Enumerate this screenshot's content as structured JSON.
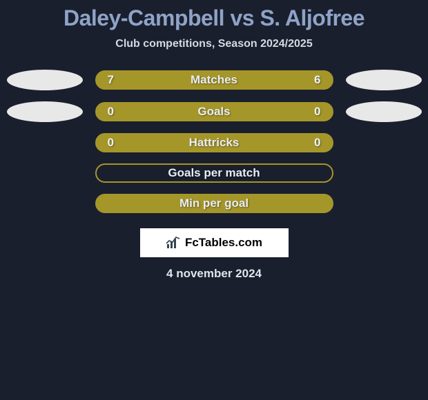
{
  "title": "Daley-Campbell vs S. Aljofree",
  "subtitle": "Club competitions, Season 2024/2025",
  "logo_text": "FcTables.com",
  "footer_date": "4 november 2024",
  "colors": {
    "background": "#1a1f2e",
    "title": "#8fa3c7",
    "text": "#e0e4ec",
    "ellipse": "#e8e8e8",
    "logo_bg": "#ffffff",
    "logo_chart": "#36454f"
  },
  "rows": [
    {
      "label": "Matches",
      "left_val": "7",
      "right_val": "6",
      "bar_fill": "#a59629",
      "bar_border": "#a59629",
      "has_ellipses": true
    },
    {
      "label": "Goals",
      "left_val": "0",
      "right_val": "0",
      "bar_fill": "#a59629",
      "bar_border": "#a59629",
      "has_ellipses": true
    },
    {
      "label": "Hattricks",
      "left_val": "0",
      "right_val": "0",
      "bar_fill": "#a59629",
      "bar_border": "#a59629",
      "has_ellipses": false
    },
    {
      "label": "Goals per match",
      "left_val": "",
      "right_val": "",
      "bar_fill": "transparent",
      "bar_border": "#a59629",
      "has_ellipses": false
    },
    {
      "label": "Min per goal",
      "left_val": "",
      "right_val": "",
      "bar_fill": "#a59629",
      "bar_border": "#a59629",
      "has_ellipses": false
    }
  ]
}
